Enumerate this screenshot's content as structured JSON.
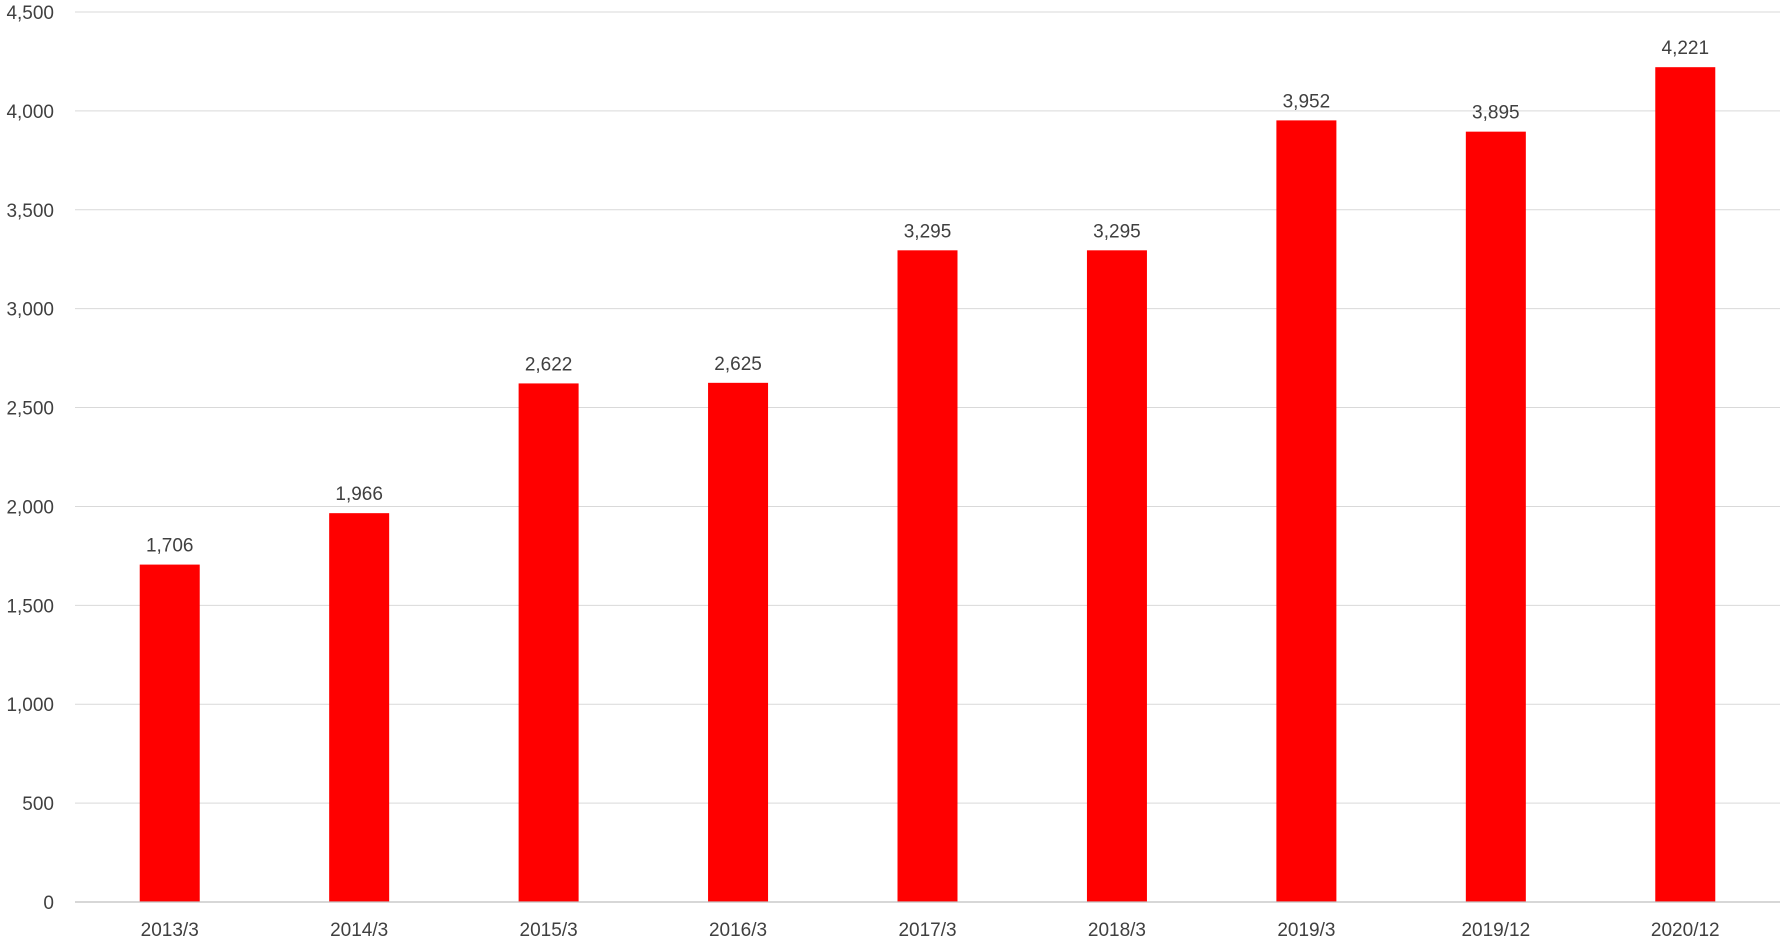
{
  "chart_data": {
    "type": "bar",
    "title": "",
    "xlabel": "",
    "ylabel": "",
    "categories": [
      "2013/3",
      "2014/3",
      "2015/3",
      "2016/3",
      "2017/3",
      "2018/3",
      "2019/3",
      "2019/12",
      "2020/12"
    ],
    "values": [
      1706,
      1966,
      2622,
      2625,
      3295,
      3295,
      3952,
      3895,
      4221
    ],
    "value_labels": [
      "1,706",
      "1,966",
      "2,622",
      "2,625",
      "3,295",
      "3,295",
      "3,952",
      "3,895",
      "4,221"
    ],
    "ylim": [
      0,
      4500
    ],
    "y_ticks": [
      0,
      500,
      1000,
      1500,
      2000,
      2500,
      3000,
      3500,
      4000,
      4500
    ],
    "y_tick_labels": [
      "0",
      "500",
      "1,000",
      "1,500",
      "2,000",
      "2,500",
      "3,000",
      "3,500",
      "4,000",
      "4,500"
    ],
    "grid": true,
    "legend": "none",
    "colors": {
      "bar": "#ff0000",
      "grid": "#d9d9d9",
      "axis": "#bfbfbf",
      "text": "#404040"
    }
  }
}
